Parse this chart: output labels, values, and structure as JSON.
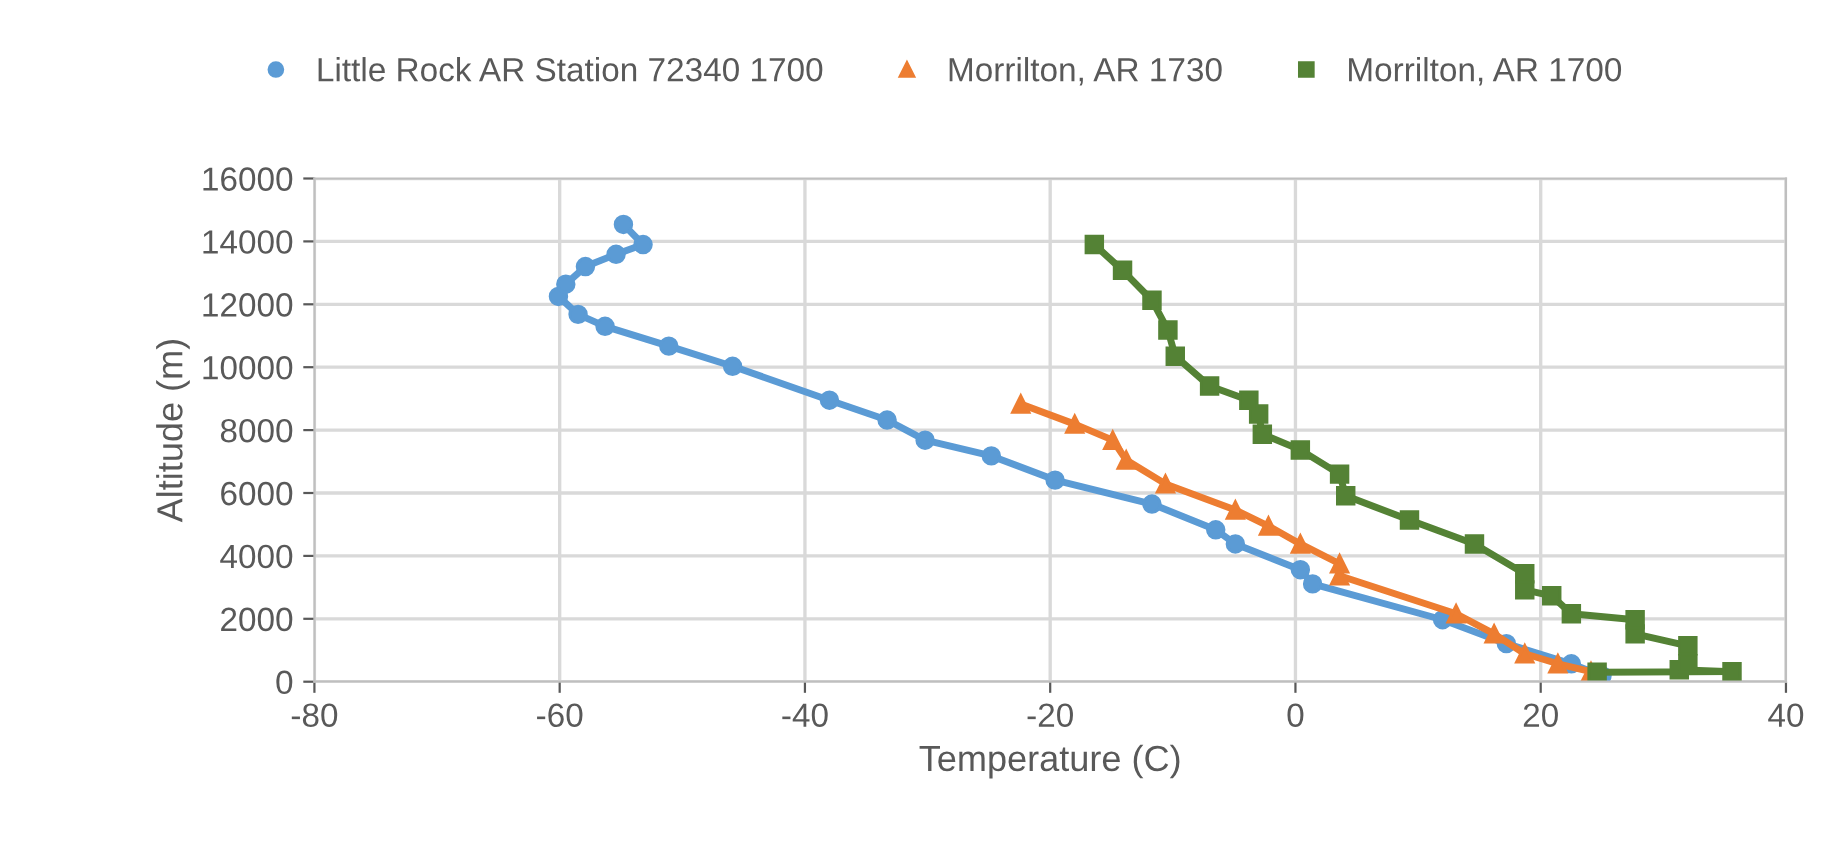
{
  "chart_data": {
    "type": "line",
    "xlabel": "Temperature (C)",
    "ylabel": "Altitude (m)",
    "xlim": [
      -80,
      40
    ],
    "xticks": [
      -80,
      -60,
      -40,
      -20,
      0,
      20,
      40
    ],
    "ylim": [
      0,
      16000
    ],
    "yticks": [
      0,
      2000,
      4000,
      6000,
      8000,
      10000,
      12000,
      14000,
      16000
    ],
    "grid": true,
    "legend": "top",
    "series": [
      {
        "name": "Little Rock AR Station 72340 1700",
        "color": "#5b9bd5",
        "marker": "circle",
        "x": [
          25.0,
          22.5,
          17.2,
          12.0,
          1.4,
          0.4,
          -4.9,
          -6.5,
          -11.7,
          -19.6,
          -24.8,
          -30.2,
          -33.3,
          -38.0,
          -45.9,
          -51.1,
          -56.3,
          -58.5,
          -60.1,
          -59.5,
          -57.9,
          -55.4,
          -53.2,
          -54.8
        ],
        "values": [
          190,
          570,
          1210,
          1970,
          3110,
          3560,
          4380,
          4830,
          5650,
          6410,
          7180,
          7680,
          8320,
          8950,
          10030,
          10670,
          11300,
          11680,
          12250,
          12640,
          13200,
          13590,
          13900,
          14540
        ]
      },
      {
        "name": "Morrilton, AR 1730",
        "color": "#ed7d31",
        "marker": "triangle",
        "x": [
          24.1,
          21.4,
          18.7,
          16.2,
          13.1,
          3.6,
          3.6,
          0.4,
          -2.2,
          -4.9,
          -10.6,
          -13.8,
          -14.9,
          -18.0,
          -22.4
        ],
        "values": [
          320,
          570,
          890,
          1520,
          2160,
          3370,
          3750,
          4380,
          4950,
          5460,
          6290,
          7050,
          7680,
          8190,
          8830
        ]
      },
      {
        "name": "Morrilton, AR 1700",
        "color": "#548235",
        "marker": "square",
        "x": [
          24.6,
          35.6,
          31.3,
          32.0,
          32.0,
          27.7,
          27.7,
          22.5,
          20.9,
          18.7,
          18.7,
          14.6,
          9.3,
          4.1,
          3.6,
          0.4,
          -2.7,
          -3.0,
          -3.8,
          -7.0,
          -9.8,
          -10.4,
          -11.7,
          -14.1,
          -16.4
        ],
        "values": [
          300,
          320,
          380,
          570,
          1140,
          1520,
          1970,
          2160,
          2730,
          2920,
          3430,
          4380,
          5140,
          5910,
          6600,
          7370,
          7870,
          8510,
          8950,
          9400,
          10350,
          11180,
          12130,
          13080,
          13900
        ]
      }
    ]
  }
}
